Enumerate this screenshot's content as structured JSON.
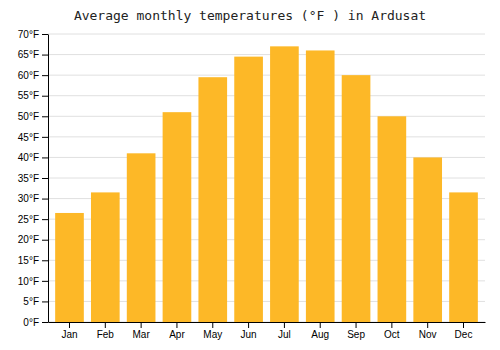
{
  "chart_data": {
    "type": "bar",
    "title": "Average monthly temperatures (°F ) in Ardusat",
    "categories": [
      "Jan",
      "Feb",
      "Mar",
      "Apr",
      "May",
      "Jun",
      "Jul",
      "Aug",
      "Sep",
      "Oct",
      "Nov",
      "Dec"
    ],
    "values": [
      26.5,
      31.5,
      41.0,
      51.0,
      59.5,
      64.5,
      67.0,
      66.0,
      60.0,
      50.0,
      40.0,
      31.5
    ],
    "color": "#FDB827",
    "ylim": [
      0,
      70
    ],
    "yticks": [
      {
        "value": 0,
        "label": "0°F"
      },
      {
        "value": 5,
        "label": "5°F"
      },
      {
        "value": 10,
        "label": "10°F"
      },
      {
        "value": 15,
        "label": "15°F"
      },
      {
        "value": 20,
        "label": "20°F"
      },
      {
        "value": 25,
        "label": "25°F"
      },
      {
        "value": 30,
        "label": "30°F"
      },
      {
        "value": 35,
        "label": "35°F"
      },
      {
        "value": 40,
        "label": "40°F"
      },
      {
        "value": 45,
        "label": "45°F"
      },
      {
        "value": 50,
        "label": "50°F"
      },
      {
        "value": 55,
        "label": "55°F"
      },
      {
        "value": 60,
        "label": "60°F"
      },
      {
        "value": 65,
        "label": "65°F"
      },
      {
        "value": 70,
        "label": "70°F"
      }
    ],
    "grid": true
  }
}
